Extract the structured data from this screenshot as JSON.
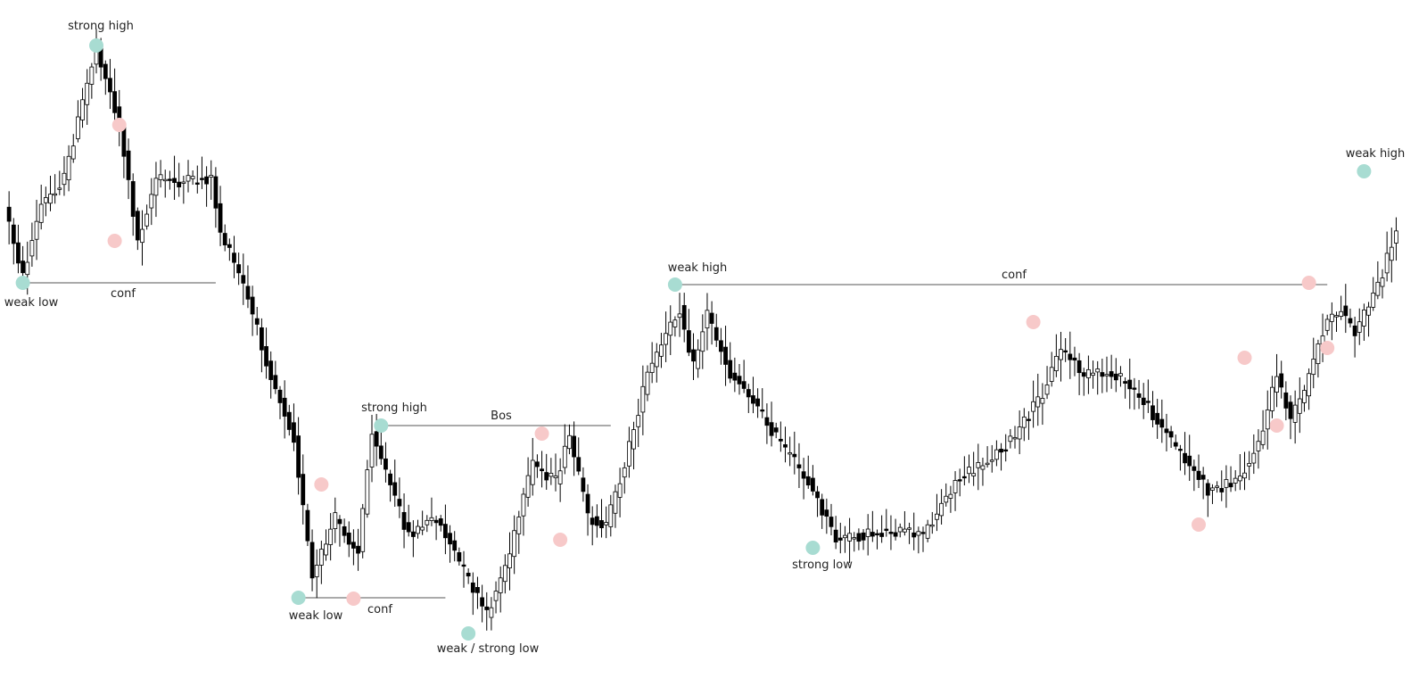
{
  "chart_data": {
    "type": "candlestick",
    "title": "",
    "xlabel": "",
    "ylabel": "",
    "ylim": [
      0,
      779
    ],
    "colors": {
      "bull_body": "#ffffff",
      "bear_body": "#000000",
      "wick": "#000000",
      "strong_marker": "#a8dcd2",
      "weak_marker": "#f7c9c9",
      "level_line": "#555555"
    },
    "labels": {
      "strong_high_1": "strong high",
      "weak_low_1": "weak low",
      "conf_1": "conf",
      "strong_high_2": "strong high",
      "bos": "Bos",
      "weak_low_2": "weak low",
      "conf_2": "conf",
      "weak_strong_low": "weak / strong low",
      "weak_high_1": "weak high",
      "conf_3": "conf",
      "strong_low": "strong low",
      "weak_high_2": "weak high"
    },
    "anchors": [
      [
        0,
        231
      ],
      [
        4,
        310
      ],
      [
        8,
        230
      ],
      [
        13,
        200
      ],
      [
        20,
        51
      ],
      [
        25,
        140
      ],
      [
        29,
        270
      ],
      [
        33,
        200
      ],
      [
        38,
        205
      ],
      [
        45,
        200
      ],
      [
        47,
        260
      ],
      [
        52,
        320
      ],
      [
        58,
        420
      ],
      [
        63,
        490
      ],
      [
        67,
        650
      ],
      [
        72,
        580
      ],
      [
        77,
        620
      ],
      [
        80,
        480
      ],
      [
        85,
        560
      ],
      [
        88,
        600
      ],
      [
        94,
        580
      ],
      [
        98,
        620
      ],
      [
        105,
        690
      ],
      [
        110,
        620
      ],
      [
        115,
        520
      ],
      [
        120,
        540
      ],
      [
        123,
        490
      ],
      [
        127,
        580
      ],
      [
        131,
        590
      ],
      [
        135,
        520
      ],
      [
        140,
        420
      ],
      [
        147,
        345
      ],
      [
        150,
        410
      ],
      [
        153,
        350
      ],
      [
        158,
        420
      ],
      [
        162,
        440
      ],
      [
        168,
        490
      ],
      [
        175,
        540
      ],
      [
        181,
        605
      ],
      [
        187,
        600
      ],
      [
        193,
        595
      ],
      [
        200,
        600
      ],
      [
        207,
        540
      ],
      [
        213,
        520
      ],
      [
        220,
        490
      ],
      [
        226,
        440
      ],
      [
        230,
        390
      ],
      [
        235,
        420
      ],
      [
        242,
        420
      ],
      [
        248,
        450
      ],
      [
        255,
        500
      ],
      [
        262,
        550
      ],
      [
        268,
        540
      ],
      [
        273,
        500
      ],
      [
        277,
        420
      ],
      [
        280,
        470
      ],
      [
        283,
        440
      ],
      [
        287,
        370
      ],
      [
        291,
        345
      ],
      [
        294,
        375
      ],
      [
        299,
        320
      ],
      [
        303,
        260
      ]
    ],
    "points": [
      {
        "x": 20,
        "y": 51,
        "kind": "strong",
        "label": "strong_high_1"
      },
      {
        "x": 4,
        "y": 317,
        "kind": "strong",
        "label": "weak_low_1"
      },
      {
        "x": 25,
        "y": 140,
        "kind": "weak"
      },
      {
        "x": 24,
        "y": 270,
        "kind": "weak"
      },
      {
        "x": 82,
        "y": 477,
        "kind": "strong",
        "label": "strong_high_2"
      },
      {
        "x": 64,
        "y": 670,
        "kind": "strong",
        "label": "weak_low_2"
      },
      {
        "x": 69,
        "y": 543,
        "kind": "weak"
      },
      {
        "x": 76,
        "y": 671,
        "kind": "weak"
      },
      {
        "x": 101,
        "y": 710,
        "kind": "strong",
        "label": "weak_strong_low"
      },
      {
        "x": 117,
        "y": 486,
        "kind": "weak"
      },
      {
        "x": 121,
        "y": 605,
        "kind": "weak"
      },
      {
        "x": 146,
        "y": 319,
        "kind": "strong",
        "label": "weak_high_1"
      },
      {
        "x": 176,
        "y": 614,
        "kind": "strong",
        "label": "strong_low"
      },
      {
        "x": 224,
        "y": 361,
        "kind": "weak"
      },
      {
        "x": 260,
        "y": 588,
        "kind": "weak"
      },
      {
        "x": 270,
        "y": 401,
        "kind": "weak"
      },
      {
        "x": 277,
        "y": 477,
        "kind": "weak"
      },
      {
        "x": 284,
        "y": 317,
        "kind": "weak"
      },
      {
        "x": 288,
        "y": 390,
        "kind": "weak"
      },
      {
        "x": 296,
        "y": 192,
        "kind": "strong",
        "label": "weak_high_2"
      }
    ],
    "levels": [
      {
        "x0": 4,
        "x1": 46,
        "y": 317,
        "label": "conf_1"
      },
      {
        "x0": 82,
        "x1": 132,
        "y": 477,
        "label": "bos"
      },
      {
        "x0": 64,
        "x1": 96,
        "y": 670,
        "label": "conf_2"
      },
      {
        "x0": 146,
        "x1": 288,
        "y": 319,
        "label": "conf_3"
      }
    ]
  }
}
